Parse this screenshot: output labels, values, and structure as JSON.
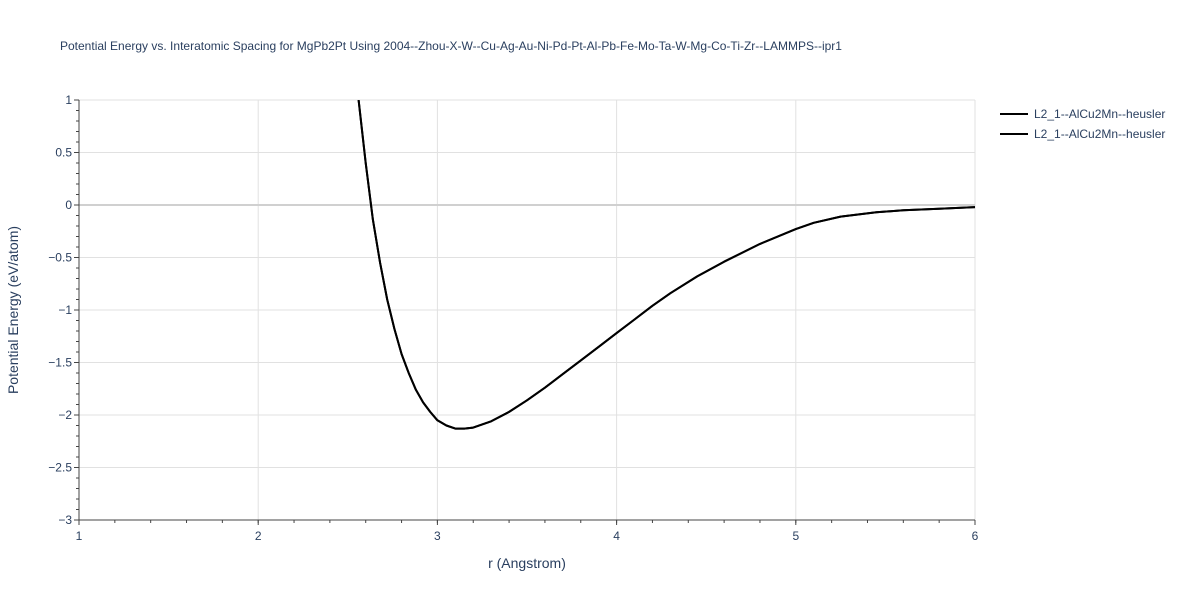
{
  "chart_data": {
    "type": "line",
    "title": "Potential Energy vs. Interatomic Spacing for MgPb2Pt Using 2004--Zhou-X-W--Cu-Ag-Au-Ni-Pd-Pt-Al-Pb-Fe-Mo-Ta-W-Mg-Co-Ti-Zr--LAMMPS--ipr1",
    "xlabel": "r (Angstrom)",
    "ylabel": "Potential Energy (eV/atom)",
    "xlim": [
      1,
      6
    ],
    "ylim": [
      -3,
      1
    ],
    "x_ticks": [
      1,
      2,
      3,
      4,
      5,
      6
    ],
    "x_tick_labels": [
      "1",
      "2",
      "3",
      "4",
      "5",
      "6"
    ],
    "y_ticks": [
      1,
      0.5,
      0,
      -0.5,
      -1,
      -1.5,
      -2,
      -2.5,
      -3
    ],
    "y_tick_labels": [
      "1",
      "0.5",
      "0",
      "−0.5",
      "−1",
      "−1.5",
      "−2",
      "−2.5",
      "−3"
    ],
    "grid": true,
    "legend_position": "top-right",
    "series": [
      {
        "name": "L2_1--AlCu2Mn--heusler",
        "color": "#000000",
        "x": [
          2.56,
          2.6,
          2.64,
          2.68,
          2.72,
          2.76,
          2.8,
          2.84,
          2.88,
          2.92,
          2.96,
          3.0,
          3.05,
          3.1,
          3.15,
          3.2,
          3.3,
          3.4,
          3.5,
          3.6,
          3.7,
          3.8,
          3.9,
          4.0,
          4.1,
          4.2,
          4.3,
          4.45,
          4.6,
          4.8,
          5.0,
          5.1,
          5.25,
          5.45,
          5.6,
          5.8,
          6.0
        ],
        "y": [
          1.0,
          0.4,
          -0.14,
          -0.55,
          -0.9,
          -1.18,
          -1.42,
          -1.6,
          -1.76,
          -1.88,
          -1.97,
          -2.05,
          -2.1,
          -2.13,
          -2.13,
          -2.12,
          -2.06,
          -1.97,
          -1.86,
          -1.74,
          -1.61,
          -1.48,
          -1.35,
          -1.22,
          -1.09,
          -0.96,
          -0.84,
          -0.68,
          -0.54,
          -0.37,
          -0.23,
          -0.17,
          -0.11,
          -0.07,
          -0.05,
          -0.035,
          -0.02
        ]
      },
      {
        "name": "L2_1--AlCu2Mn--heusler",
        "color": "#000000",
        "x": [
          2.56,
          2.6,
          2.64,
          2.68,
          2.72,
          2.76,
          2.8,
          2.84,
          2.88,
          2.92,
          2.96,
          3.0,
          3.05,
          3.1,
          3.15,
          3.2,
          3.3,
          3.4,
          3.5,
          3.6,
          3.7,
          3.8,
          3.9,
          4.0,
          4.1,
          4.2,
          4.3,
          4.45,
          4.6,
          4.8,
          5.0,
          5.1,
          5.25,
          5.45,
          5.6,
          5.8,
          6.0
        ],
        "y": [
          1.0,
          0.4,
          -0.14,
          -0.55,
          -0.9,
          -1.18,
          -1.42,
          -1.6,
          -1.76,
          -1.88,
          -1.97,
          -2.05,
          -2.1,
          -2.13,
          -2.13,
          -2.12,
          -2.06,
          -1.97,
          -1.86,
          -1.74,
          -1.61,
          -1.48,
          -1.35,
          -1.22,
          -1.09,
          -0.96,
          -0.84,
          -0.68,
          -0.54,
          -0.37,
          -0.23,
          -0.17,
          -0.11,
          -0.07,
          -0.05,
          -0.035,
          -0.02
        ]
      }
    ]
  }
}
